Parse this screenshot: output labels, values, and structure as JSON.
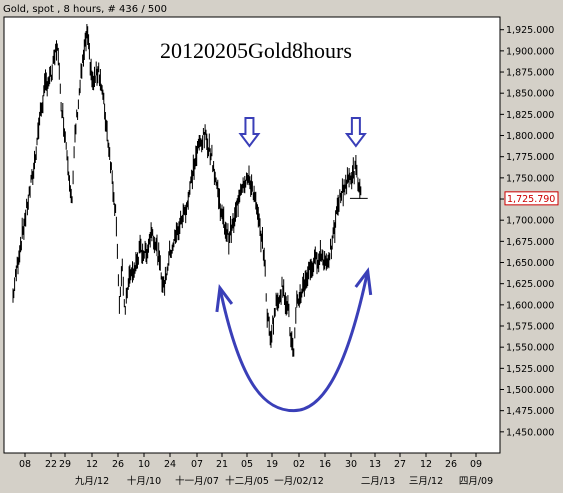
{
  "header_text": "Gold, spot , 8 hours, # 436 / 500",
  "chart_data": {
    "type": "candlestick",
    "title": "20120205Gold8hours",
    "instrument": "Gold, spot",
    "ylim": [
      1425,
      1940
    ],
    "y_ticks": [
      1450,
      1475,
      1500,
      1525,
      1550,
      1575,
      1600,
      1625,
      1650,
      1675,
      1700,
      1725,
      1750,
      1775,
      1800,
      1825,
      1850,
      1875,
      1900,
      1925
    ],
    "y_tick_labels": [
      "1,450.000",
      "1,475.000",
      "1,500.000",
      "1,525.000",
      "1,550.000",
      "1,575.000",
      "1,600.000",
      "1,625.000",
      "1,650.000",
      "1,675.000",
      "1,700.000",
      "1,725.000",
      "1,750.000",
      "1,775.000",
      "1,800.000",
      "1,825.000",
      "1,850.000",
      "1,875.000",
      "1,900.000",
      "1,925.000"
    ],
    "last_price": 1725.79,
    "last_price_label": "1,725.790",
    "x_day_ticks": [
      "08",
      "22",
      "29",
      "12",
      "26",
      "10",
      "24",
      "07",
      "21",
      "05",
      "19",
      "02",
      "16",
      "30",
      "13",
      "27",
      "12",
      "26",
      "09"
    ],
    "x_month_labels": [
      "九月/12",
      "十月/10",
      "十一月/07",
      "十二月/05",
      "一月/02/12",
      "二月/13",
      "三月/12",
      "四月/09"
    ],
    "price_path": [
      [
        1,
        1610
      ],
      [
        3,
        1660
      ],
      [
        5,
        1700
      ],
      [
        8,
        1760
      ],
      [
        10,
        1820
      ],
      [
        12,
        1860
      ],
      [
        14,
        1870
      ],
      [
        16,
        1910
      ],
      [
        17,
        1850
      ],
      [
        19,
        1790
      ],
      [
        21,
        1720
      ],
      [
        22,
        1800
      ],
      [
        24,
        1870
      ],
      [
        26,
        1920
      ],
      [
        28,
        1860
      ],
      [
        30,
        1880
      ],
      [
        32,
        1830
      ],
      [
        34,
        1770
      ],
      [
        36,
        1700
      ],
      [
        37,
        1600
      ],
      [
        38,
        1640
      ],
      [
        39,
        1590
      ],
      [
        40,
        1630
      ],
      [
        42,
        1640
      ],
      [
        44,
        1665
      ],
      [
        46,
        1660
      ],
      [
        48,
        1690
      ],
      [
        50,
        1660
      ],
      [
        52,
        1620
      ],
      [
        54,
        1660
      ],
      [
        56,
        1680
      ],
      [
        58,
        1700
      ],
      [
        60,
        1720
      ],
      [
        62,
        1760
      ],
      [
        64,
        1790
      ],
      [
        66,
        1800
      ],
      [
        68,
        1780
      ],
      [
        70,
        1740
      ],
      [
        72,
        1700
      ],
      [
        74,
        1680
      ],
      [
        76,
        1700
      ],
      [
        78,
        1740
      ],
      [
        80,
        1750
      ],
      [
        82,
        1740
      ],
      [
        84,
        1700
      ],
      [
        86,
        1660
      ],
      [
        87,
        1590
      ],
      [
        88,
        1560
      ],
      [
        90,
        1600
      ],
      [
        92,
        1620
      ],
      [
        94,
        1600
      ],
      [
        95,
        1560
      ],
      [
        96,
        1540
      ],
      [
        97,
        1600
      ],
      [
        99,
        1620
      ],
      [
        101,
        1640
      ],
      [
        103,
        1650
      ],
      [
        105,
        1660
      ],
      [
        107,
        1650
      ],
      [
        109,
        1670
      ],
      [
        111,
        1720
      ],
      [
        113,
        1740
      ],
      [
        115,
        1750
      ],
      [
        117,
        1760
      ],
      [
        118,
        1740
      ],
      [
        119,
        1726
      ]
    ],
    "x_domain": [
      0,
      160
    ],
    "annotations": [
      {
        "type": "arrow-down",
        "x": 81,
        "y": 1790
      },
      {
        "type": "arrow-down",
        "x": 117,
        "y": 1790
      },
      {
        "type": "u-curve",
        "from": [
          71,
          1620
        ],
        "bottom": [
          96,
          1475
        ],
        "to": [
          121,
          1640
        ]
      }
    ]
  }
}
